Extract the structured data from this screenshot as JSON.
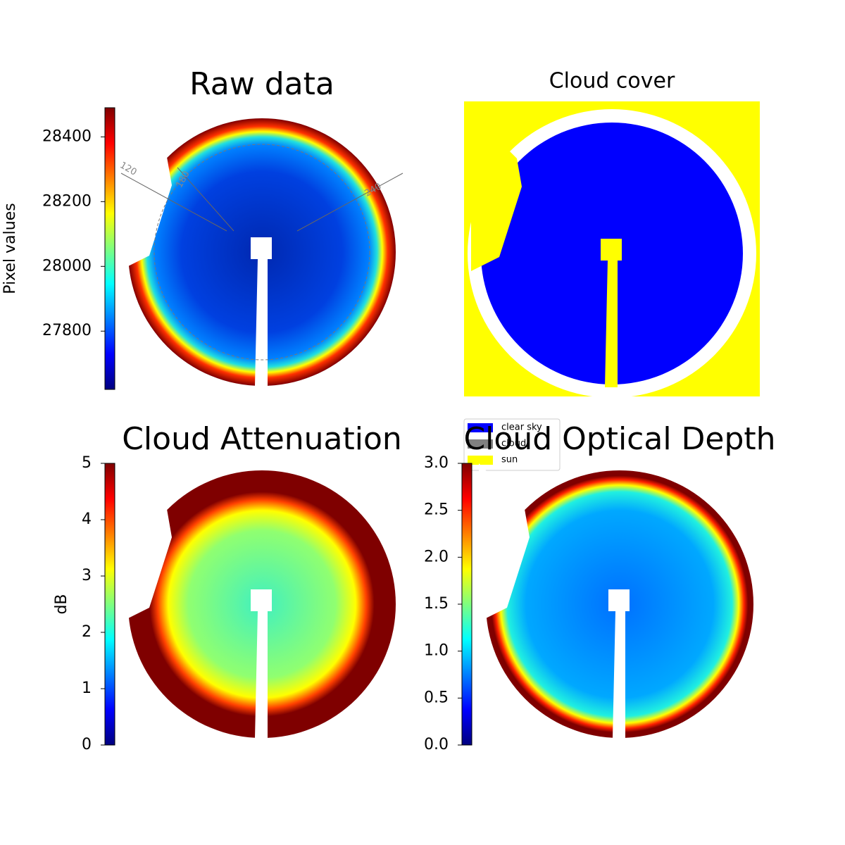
{
  "chart_data": [
    {
      "type": "image",
      "title": "Raw data",
      "colorbar": {
        "label": "Pixel values",
        "colormap": "jet",
        "lim": [
          27620,
          28490
        ],
        "ticks": [
          27800,
          28000,
          28200,
          28400
        ]
      },
      "polar_labels": [
        "120",
        "180",
        "240"
      ]
    },
    {
      "type": "classes",
      "title": "Cloud cover",
      "legend": [
        {
          "name": "clear sky",
          "color": "#0000ff"
        },
        {
          "name": "cloud",
          "color": "#808080"
        },
        {
          "name": "sun",
          "color": "#ffff00"
        }
      ]
    },
    {
      "type": "image",
      "title": "Cloud Attenuation",
      "colorbar": {
        "label": "dB",
        "colormap": "jet",
        "lim": [
          0,
          5
        ],
        "ticks": [
          0,
          1,
          2,
          3,
          4,
          5
        ]
      }
    },
    {
      "type": "image",
      "title": "Cloud Optical Depth",
      "colorbar": {
        "colormap": "jet",
        "lim": [
          0,
          3
        ],
        "ticks": [
          {
            "value": 0,
            "label": "0.0"
          },
          0.5,
          {
            "value": 1,
            "label": "1.0"
          },
          1.5,
          {
            "value": 2,
            "label": "2.0"
          },
          2.5,
          {
            "value": 3,
            "label": "3.0"
          }
        ]
      }
    }
  ]
}
